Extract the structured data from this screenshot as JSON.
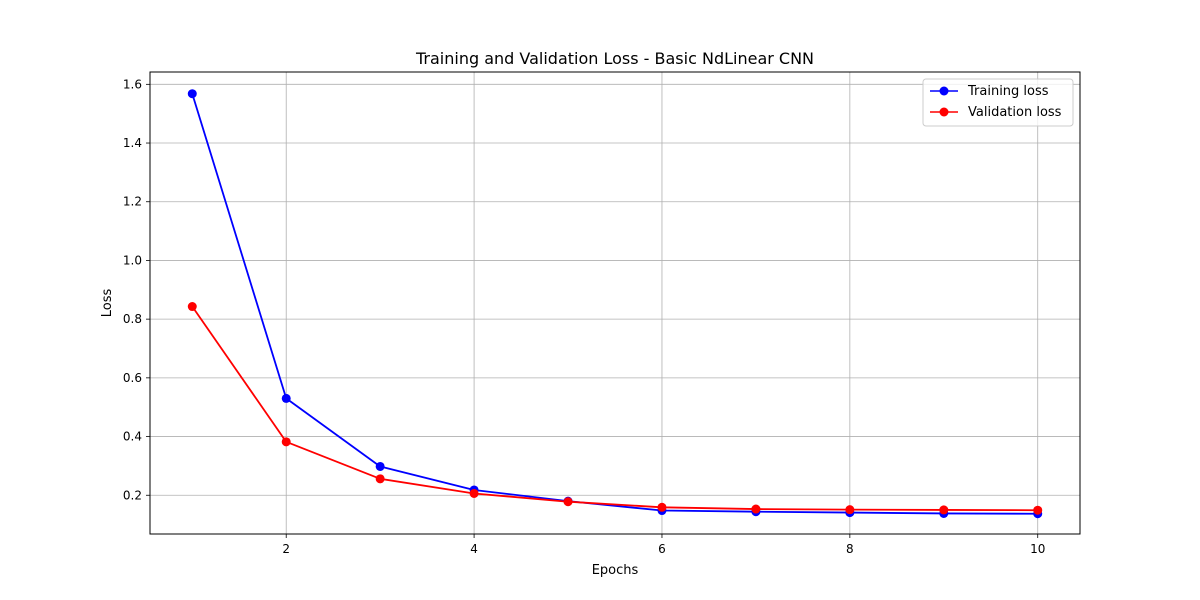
{
  "chart_data": {
    "type": "line",
    "title": "Training and Validation Loss - Basic NdLinear CNN",
    "xlabel": "Epochs",
    "ylabel": "Loss",
    "x": [
      1,
      2,
      3,
      4,
      5,
      6,
      7,
      8,
      9,
      10
    ],
    "xlim": [
      0.55,
      10.45
    ],
    "ylim": [
      0.068,
      1.642
    ],
    "xticks": [
      2,
      4,
      6,
      8,
      10
    ],
    "xtick_labels": [
      "2",
      "4",
      "6",
      "8",
      "10"
    ],
    "yticks": [
      0.2,
      0.4,
      0.6,
      0.8,
      1.0,
      1.2,
      1.4,
      1.6
    ],
    "ytick_labels": [
      "0.2",
      "0.4",
      "0.6",
      "0.8",
      "1.0",
      "1.2",
      "1.4",
      "1.6"
    ],
    "grid": true,
    "legend_position": "upper right",
    "series": [
      {
        "name": "Training loss",
        "color": "#0000ff",
        "marker": "circle",
        "values": [
          1.568,
          0.53,
          0.298,
          0.218,
          0.18,
          0.148,
          0.144,
          0.141,
          0.138,
          0.137
        ]
      },
      {
        "name": "Validation loss",
        "color": "#ff0000",
        "marker": "circle",
        "values": [
          0.843,
          0.382,
          0.256,
          0.206,
          0.178,
          0.159,
          0.153,
          0.151,
          0.15,
          0.149
        ]
      }
    ]
  }
}
